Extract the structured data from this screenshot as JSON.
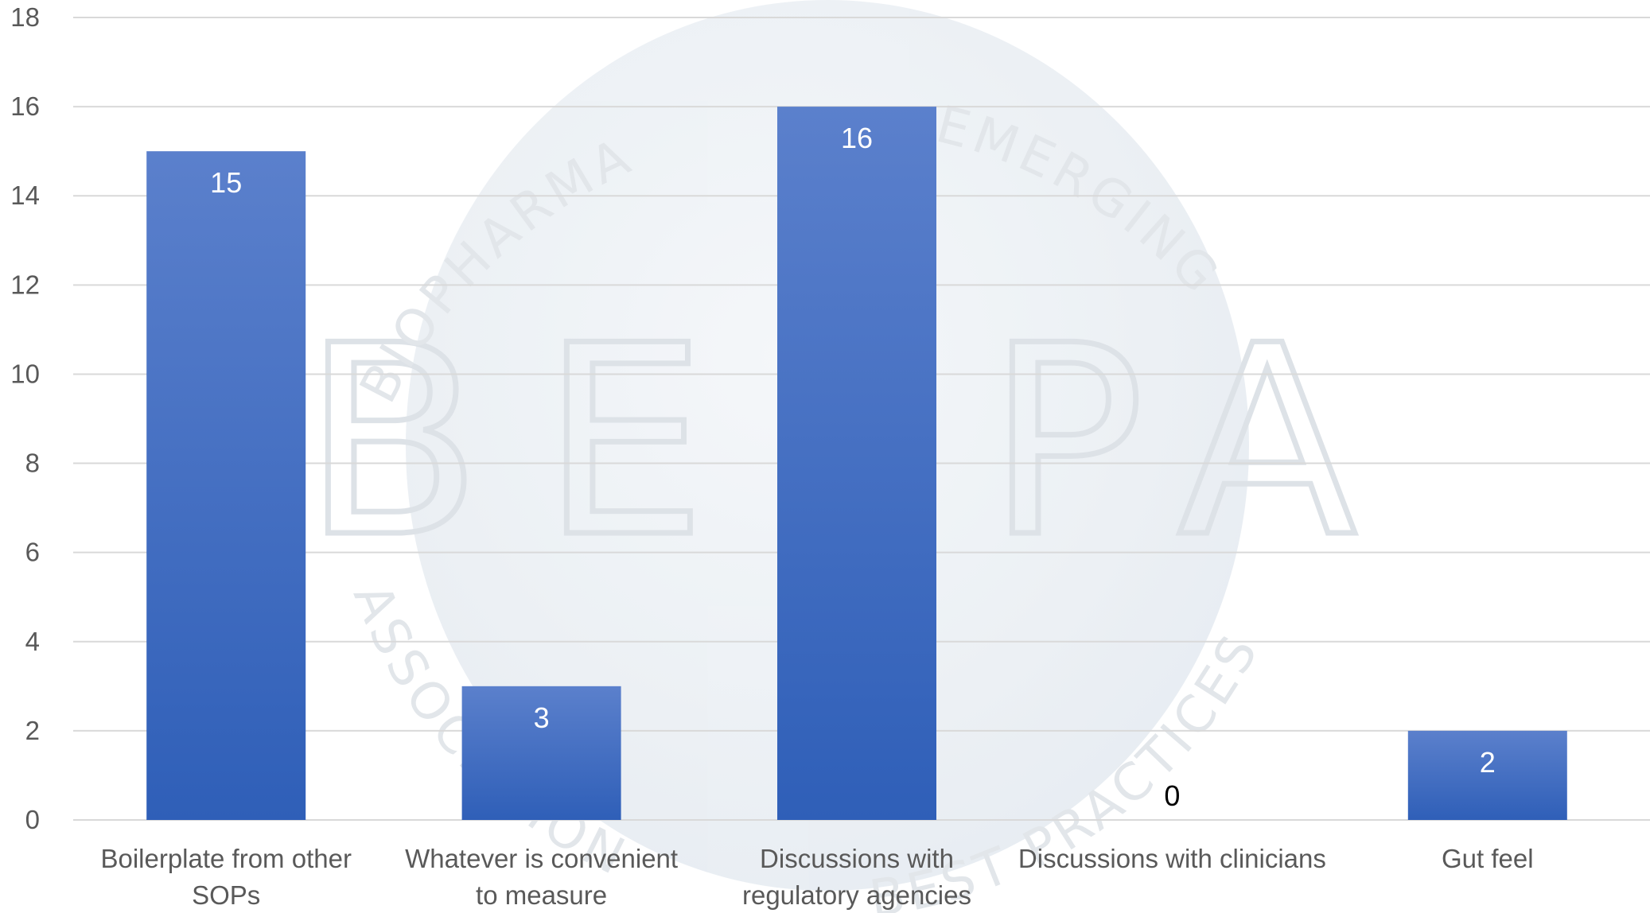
{
  "chart_data": {
    "type": "bar",
    "title": "",
    "xlabel": "",
    "ylabel": "",
    "ylim": [
      0,
      18
    ],
    "yticks": [
      0,
      2,
      4,
      6,
      8,
      10,
      12,
      14,
      16,
      18
    ],
    "grid": true,
    "legend": "none",
    "categories": [
      [
        "Boilerplate from other",
        "SOPs"
      ],
      [
        "Whatever is convenient",
        "to measure"
      ],
      [
        "Discussions with",
        "regulatory agencies"
      ],
      [
        "Discussions with clinicians"
      ],
      [
        "Gut feel"
      ]
    ],
    "values": [
      15,
      3,
      16,
      0,
      2
    ],
    "data_labels": [
      "15",
      "3",
      "16",
      "0",
      "2"
    ],
    "colors": {
      "bar_top": "#5b80cc",
      "bar_bottom": "#2f5fb8",
      "grid": "#d9d9d9",
      "tick_text": "#595959",
      "label_inside": "#ffffff",
      "label_outside": "#000000"
    }
  },
  "watermark": {
    "letters": [
      "B",
      "E",
      "P",
      "A"
    ],
    "arc_top": "BIOPHARMA",
    "arc_top_right": "EMERGING",
    "arc_bottom_left": "ASSOCIATION",
    "arc_bottom_right": "BEST PRACTICES"
  }
}
